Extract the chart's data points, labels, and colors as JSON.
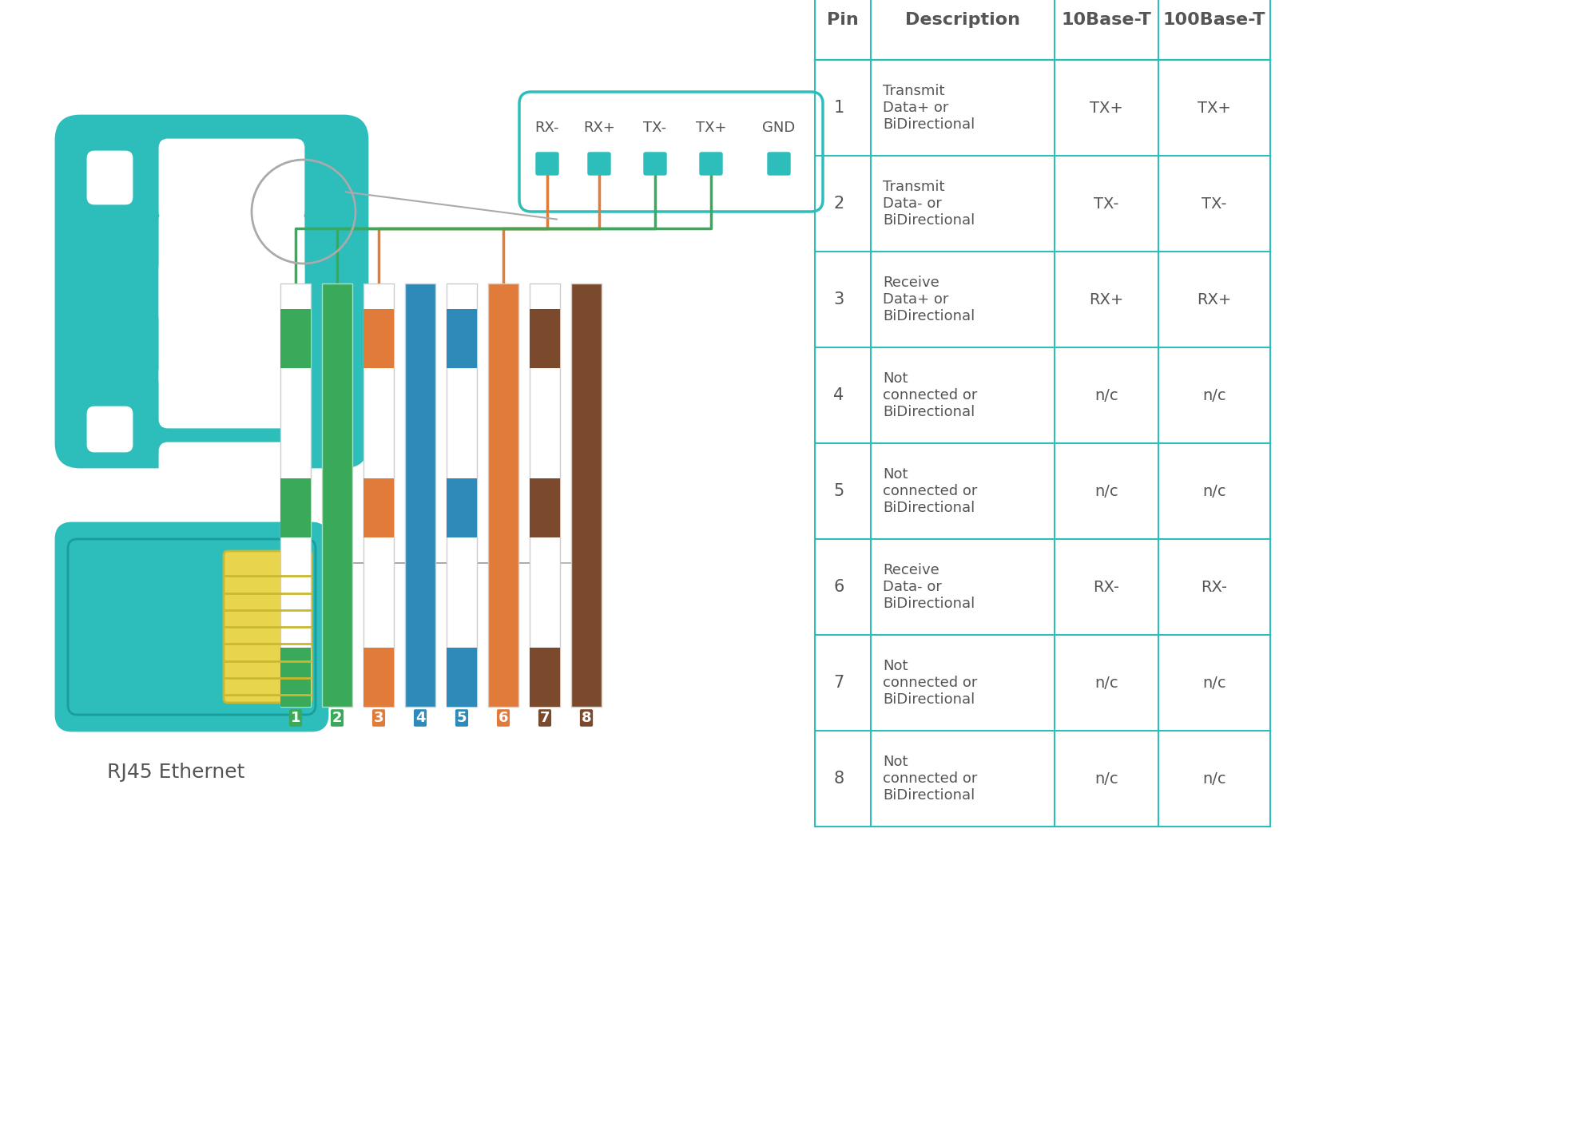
{
  "bg_color": "#ffffff",
  "teal": "#2dbdba",
  "teal_light": "#40c9c6",
  "orange": "#e07b39",
  "green": "#3aaa5a",
  "blue": "#2e8ab8",
  "brown": "#7b4a2d",
  "gray": "#aaaaaa",
  "dark_gray": "#555555",
  "pin_labels": [
    "1",
    "2",
    "3",
    "4",
    "5",
    "6",
    "7",
    "8"
  ],
  "pin_colors": [
    "#3aaa5a",
    "#3aaa5a",
    "#e07b39",
    "#2e8ab8",
    "#2e8ab8",
    "#e07b39",
    "#7b4a2d",
    "#7b4a2d"
  ],
  "pin_stripe_colors": [
    "#3aaa5a",
    "#3aaa5a",
    "#e07b39",
    "#2e8ab8",
    "#2e8ab8",
    "#e07b39",
    "#7b4a2d",
    "#7b4a2d"
  ],
  "connector_labels": [
    "RX-",
    "RX+",
    "TX-",
    "TX+",
    "GND"
  ],
  "table_headers": [
    "Pin",
    "Description",
    "10Base-T",
    "100Base-T"
  ],
  "table_rows": [
    [
      "1",
      "Transmit\nData+ or\nBiDirectional",
      "TX+",
      "TX+"
    ],
    [
      "2",
      "Transmit\nData- or\nBiDirectional",
      "TX-",
      "TX-"
    ],
    [
      "3",
      "Receive\nData+ or\nBiDirectional",
      "RX+",
      "RX+"
    ],
    [
      "4",
      "Not\nconnected or\nBiDirectional",
      "n/c",
      "n/c"
    ],
    [
      "5",
      "Not\nconnected or\nBiDirectional",
      "n/c",
      "n/c"
    ],
    [
      "6",
      "Receive\nData- or\nBiDirectional",
      "RX-",
      "RX-"
    ],
    [
      "7",
      "Not\nconnected or\nBiDirectional",
      "n/c",
      "n/c"
    ],
    [
      "8",
      "Not\nconnected or\nBiDirectional",
      "n/c",
      "n/c"
    ]
  ],
  "rj45_label": "RJ45 Ethernet"
}
